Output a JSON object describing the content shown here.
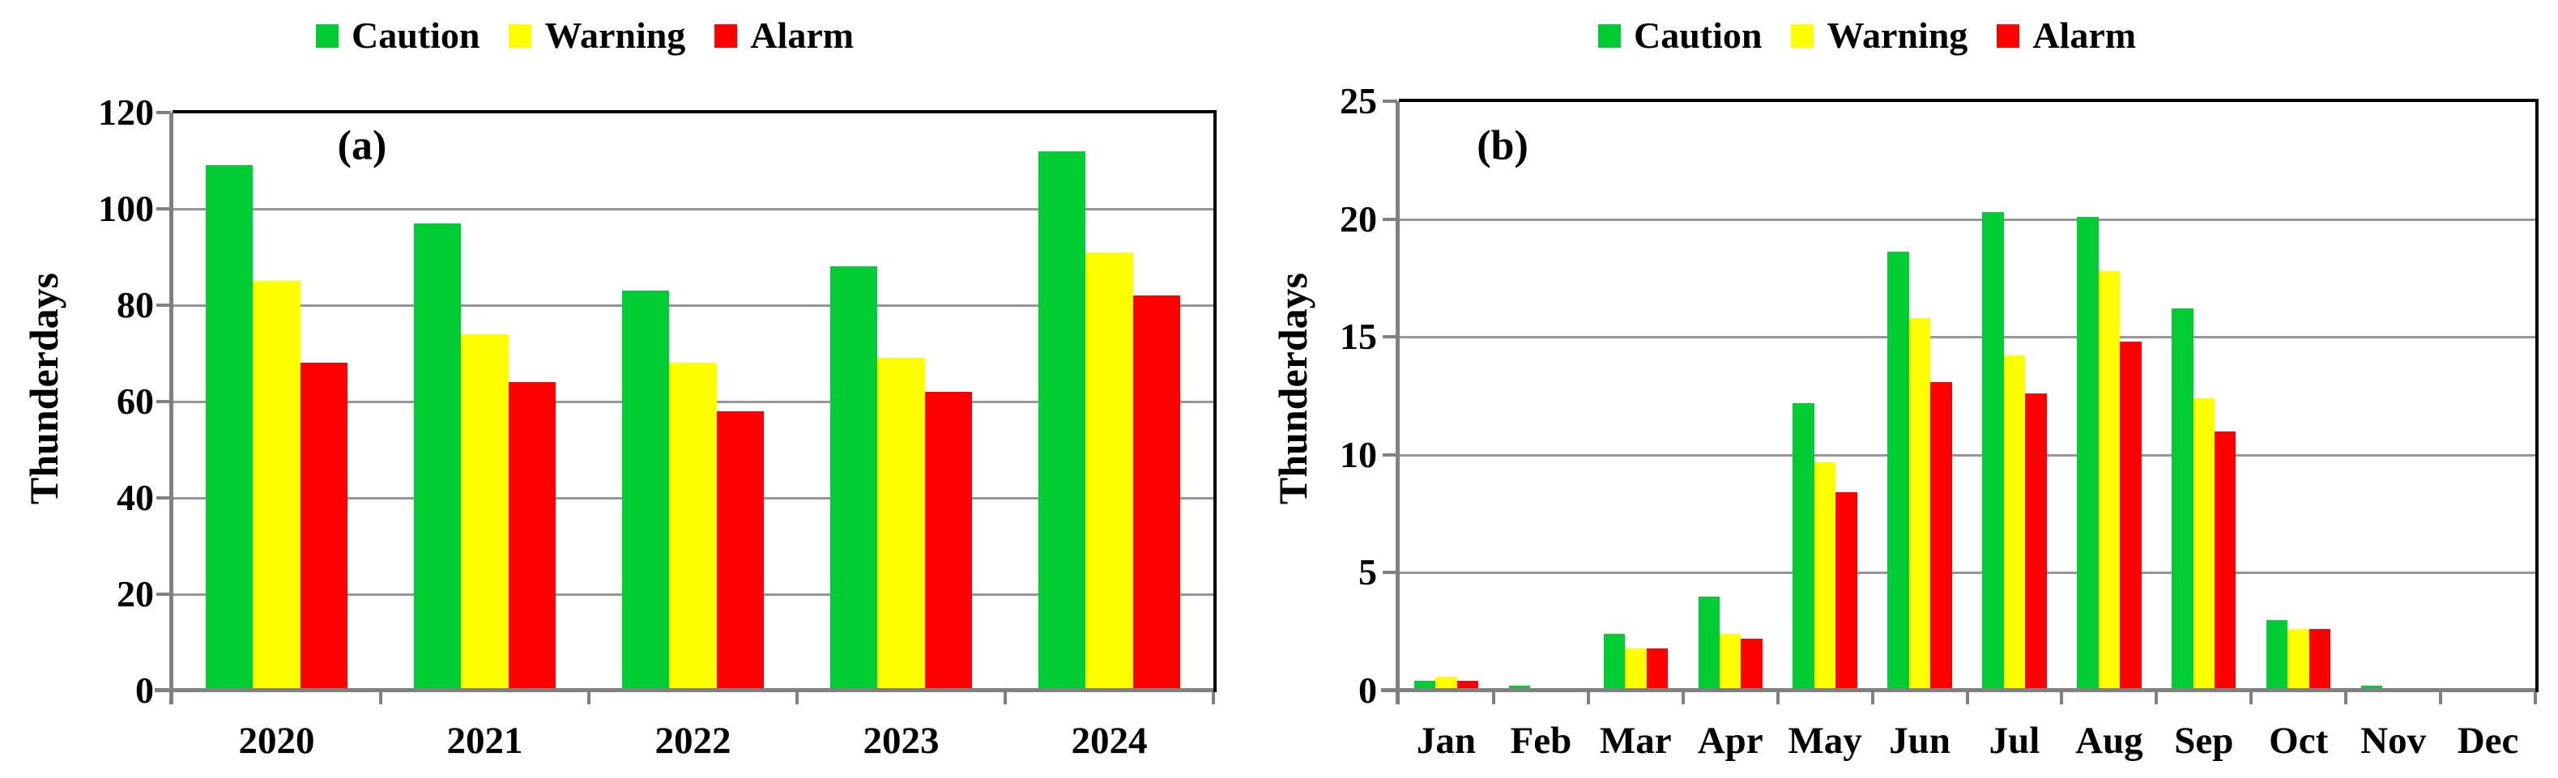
{
  "chart_data": [
    {
      "type": "bar",
      "panel_label": "(a)",
      "ylabel": "Thunderdays",
      "xlabel": "",
      "categories": [
        "2020",
        "2021",
        "2022",
        "2023",
        "2024"
      ],
      "series": [
        {
          "name": "Caution",
          "color": "#00CC33",
          "values": [
            109,
            97,
            83,
            88,
            112
          ]
        },
        {
          "name": "Warning",
          "color": "#FFFF00",
          "values": [
            85,
            74,
            68,
            69,
            91
          ]
        },
        {
          "name": "Alarm",
          "color": "#FF0000",
          "values": [
            68,
            64,
            58,
            62,
            82
          ]
        }
      ],
      "ylim": [
        0,
        120
      ],
      "y_tick_step": 20,
      "y_ticks": [
        0,
        20,
        40,
        60,
        80,
        100,
        120
      ],
      "grid": true,
      "legend_position": "top"
    },
    {
      "type": "bar",
      "panel_label": "(b)",
      "ylabel": "Thunderdays",
      "xlabel": "",
      "categories": [
        "Jan",
        "Feb",
        "Mar",
        "Apr",
        "May",
        "Jun",
        "Jul",
        "Aug",
        "Sep",
        "Oct",
        "Nov",
        "Dec"
      ],
      "series": [
        {
          "name": "Caution",
          "color": "#00CC33",
          "values": [
            0.4,
            0.2,
            2.4,
            4,
            12.2,
            18.6,
            20.3,
            20.1,
            16.2,
            3,
            0.2,
            0
          ]
        },
        {
          "name": "Warning",
          "color": "#FFFF00",
          "values": [
            0.6,
            0,
            1.8,
            2.4,
            9.7,
            15.8,
            14.2,
            17.8,
            12.4,
            2.6,
            0,
            0
          ]
        },
        {
          "name": "Alarm",
          "color": "#FF0000",
          "values": [
            0.4,
            0,
            1.8,
            2.2,
            8.4,
            13.1,
            12.6,
            14.8,
            11,
            2.6,
            0,
            0
          ]
        }
      ],
      "ylim": [
        0,
        25
      ],
      "y_tick_step": 5,
      "y_ticks": [
        0,
        5,
        10,
        15,
        20,
        25
      ],
      "grid": true,
      "legend_position": "top"
    }
  ],
  "styles": {
    "caution_color": "#00CC33",
    "warning_color": "#FFFF00",
    "alarm_color": "#FF0000",
    "gridline_color": "#969696",
    "axis_color": "#808080",
    "border_color": "#000000",
    "text_color": "#000000",
    "background_color": "#FFFFFF"
  }
}
